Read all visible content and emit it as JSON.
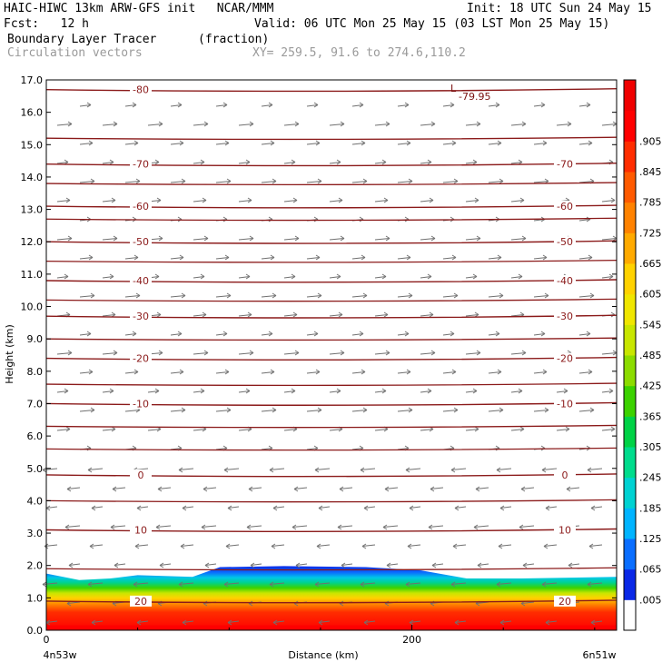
{
  "header": {
    "title": "HAIC-HIWC 13km ARW-GFS init   NCAR/MMM",
    "init": "Init: 18 UTC Sun 24 May 15",
    "fcst": "Fcst:   12 h",
    "valid": "Valid: 06 UTC Mon 25 May 15 (03 LST Mon 25 May 15)",
    "field_name": "Boundary Layer Tracer",
    "field_unit": "(fraction)",
    "vectors_label": "Circulation vectors",
    "xy_label": "XY= 259.5, 91.6 to 274.6,110.2"
  },
  "chart_data": {
    "type": "heatmap",
    "xlabel": "Distance (km)",
    "ylabel": "Height (km)",
    "xlim": [
      0,
      312
    ],
    "ylim": [
      0,
      17
    ],
    "x_ticks": [
      {
        "value": 0,
        "label": "0"
      },
      {
        "value": 200,
        "label": "200"
      }
    ],
    "x_end_labels": {
      "left": "4n53w",
      "right": "6n51w"
    },
    "y_ticks": [
      "0.0",
      "1.0",
      "2.0",
      "3.0",
      "4.0",
      "5.0",
      "6.0",
      "7.0",
      "8.0",
      "9.0",
      "10.0",
      "11.0",
      "12.0",
      "13.0",
      "14.0",
      "15.0",
      "16.0",
      "17.0"
    ],
    "colorbar": {
      "labels": [
        ".005",
        ".065",
        ".125",
        ".185",
        ".245",
        ".305",
        ".365",
        ".425",
        ".485",
        ".545",
        ".605",
        ".665",
        ".725",
        ".785",
        ".845",
        ".905"
      ],
      "colors": [
        "#ffffff",
        "#0a28e6",
        "#0a6eff",
        "#00b4ff",
        "#00d2d2",
        "#00dc8c",
        "#00d246",
        "#3cd200",
        "#8cdc00",
        "#c8e600",
        "#f0e600",
        "#ffd200",
        "#ffaa00",
        "#ff8200",
        "#ff5a00",
        "#ff2d00",
        "#ff0000",
        "#f00000"
      ]
    },
    "temperature_contours": [
      {
        "label": "-80",
        "height_km": 16.7
      },
      {
        "label": "-70",
        "height_km": 14.4
      },
      {
        "label": "-60",
        "height_km": 13.1
      },
      {
        "label": "-50",
        "height_km": 12.0
      },
      {
        "label": "-40",
        "height_km": 10.8
      },
      {
        "label": "-30",
        "height_km": 9.7
      },
      {
        "label": "-20",
        "height_km": 8.4
      },
      {
        "label": "-10",
        "height_km": 7.0
      },
      {
        "label": "0",
        "height_km": 4.8
      },
      {
        "label": "10",
        "height_km": 3.1
      },
      {
        "label": "20",
        "height_km": 0.9
      }
    ],
    "extra_contours_km": [
      15.2,
      13.8,
      12.7,
      11.4,
      10.2,
      9.0,
      7.6,
      6.3,
      5.6,
      4.0,
      1.9
    ],
    "min_label": {
      "marker": "L",
      "value": "-79.95"
    },
    "tracer_top_km": [
      {
        "x": 0,
        "top": 1.75
      },
      {
        "x": 18,
        "top": 1.55
      },
      {
        "x": 35,
        "top": 1.6
      },
      {
        "x": 50,
        "top": 1.7
      },
      {
        "x": 80,
        "top": 1.65
      },
      {
        "x": 95,
        "top": 1.95
      },
      {
        "x": 130,
        "top": 1.98
      },
      {
        "x": 175,
        "top": 1.95
      },
      {
        "x": 205,
        "top": 1.85
      },
      {
        "x": 230,
        "top": 1.6
      },
      {
        "x": 260,
        "top": 1.6
      },
      {
        "x": 312,
        "top": 1.65
      }
    ]
  }
}
